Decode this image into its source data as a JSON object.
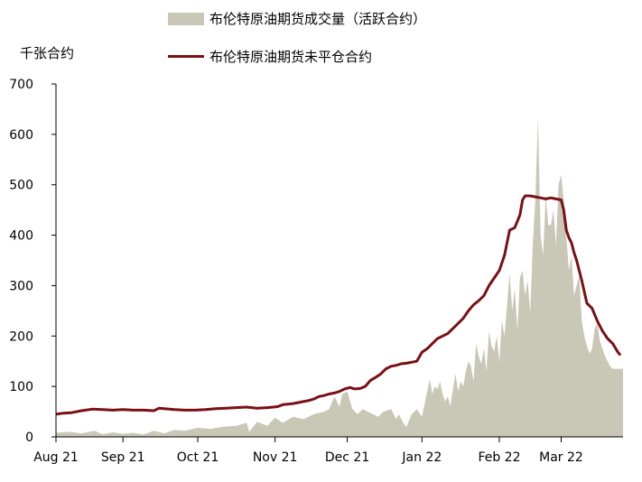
{
  "chart_data": {
    "type": "area",
    "ylabel": "千张合约",
    "ylim": [
      0,
      700
    ],
    "yticks": [
      0,
      100,
      200,
      300,
      400,
      500,
      600,
      700
    ],
    "xlim": [
      0,
      220
    ],
    "xticks": [
      {
        "label": "Aug 21",
        "x": 0
      },
      {
        "label": "Sep 21",
        "x": 26
      },
      {
        "label": "Oct 21",
        "x": 55
      },
      {
        "label": "Nov 21",
        "x": 85
      },
      {
        "label": "Dec 21",
        "x": 113
      },
      {
        "label": "Jan 22",
        "x": 142
      },
      {
        "label": "Feb 22",
        "x": 172
      },
      {
        "label": "Mar 22",
        "x": 196
      }
    ],
    "legend_position": "top",
    "series": [
      {
        "name": "布伦特原油期货成交量（活跃合约）",
        "kind": "area",
        "color": "#c9c7b6",
        "x": [
          0,
          5,
          10,
          15,
          18,
          22,
          26,
          30,
          34,
          38,
          42,
          46,
          50,
          55,
          60,
          65,
          70,
          74,
          75,
          78,
          82,
          85,
          88,
          92,
          96,
          100,
          104,
          106,
          108,
          110,
          111,
          113,
          115,
          117,
          119,
          121,
          123,
          125,
          127,
          130,
          132,
          133,
          135,
          136,
          138,
          140,
          142,
          143,
          144,
          145,
          146,
          147,
          148,
          149,
          150,
          151,
          152,
          153,
          154,
          155,
          156,
          157,
          158,
          159,
          160,
          161,
          162,
          163,
          164,
          165,
          166,
          167,
          168,
          169,
          170,
          171,
          172,
          173,
          174,
          175,
          176,
          177,
          178,
          179,
          180,
          181,
          182,
          183,
          184,
          185,
          186,
          187,
          188,
          189,
          190,
          191,
          192,
          193,
          194,
          195,
          196,
          197,
          198,
          199,
          200,
          201,
          202,
          203,
          204,
          205,
          206,
          207,
          208,
          209,
          210,
          211,
          212,
          213,
          214,
          215,
          216,
          217,
          218,
          219,
          220
        ],
        "values": [
          8,
          10,
          7,
          12,
          5,
          9,
          6,
          8,
          5,
          12,
          7,
          14,
          12,
          18,
          16,
          20,
          22,
          28,
          10,
          30,
          22,
          38,
          28,
          40,
          35,
          45,
          50,
          55,
          80,
          60,
          85,
          90,
          55,
          45,
          55,
          50,
          45,
          40,
          50,
          55,
          35,
          45,
          25,
          20,
          45,
          55,
          40,
          65,
          90,
          115,
          85,
          100,
          95,
          110,
          85,
          70,
          80,
          60,
          95,
          125,
          90,
          110,
          100,
          130,
          150,
          140,
          110,
          185,
          160,
          145,
          175,
          130,
          210,
          180,
          170,
          200,
          150,
          230,
          200,
          260,
          325,
          250,
          295,
          210,
          315,
          330,
          280,
          310,
          245,
          385,
          470,
          634,
          400,
          360,
          480,
          420,
          420,
          450,
          380,
          500,
          520,
          470,
          395,
          330,
          360,
          280,
          300,
          320,
          230,
          200,
          180,
          165,
          175,
          215,
          225,
          190,
          175,
          160,
          150,
          140,
          135,
          135,
          135,
          135,
          135
        ],
        "x_end_clip": 219
      },
      {
        "name": "布伦特原油期货未平仓合约",
        "kind": "line",
        "color": "#7a1015",
        "x": [
          0,
          3,
          6,
          10,
          14,
          18,
          22,
          26,
          30,
          34,
          38,
          40,
          42,
          46,
          50,
          54,
          58,
          62,
          66,
          70,
          74,
          76,
          78,
          82,
          86,
          88,
          90,
          92,
          94,
          96,
          98,
          100,
          102,
          104,
          106,
          108,
          110,
          112,
          114,
          116,
          118,
          120,
          122,
          124,
          126,
          128,
          130,
          132,
          134,
          136,
          138,
          140,
          142,
          144,
          146,
          148,
          150,
          152,
          154,
          156,
          158,
          160,
          162,
          164,
          166,
          168,
          170,
          172,
          174,
          176,
          178,
          180,
          181,
          182,
          184,
          186,
          188,
          190,
          192,
          194,
          196,
          197,
          198,
          199,
          200,
          201,
          202,
          204,
          206,
          208,
          210,
          212,
          214,
          216,
          218,
          219
        ],
        "values": [
          45,
          47,
          48,
          52,
          55,
          54,
          53,
          54,
          53,
          53,
          52,
          57,
          56,
          54,
          53,
          53,
          54,
          56,
          57,
          58,
          59,
          58,
          57,
          58,
          60,
          64,
          65,
          66,
          68,
          70,
          72,
          75,
          80,
          82,
          85,
          87,
          90,
          95,
          98,
          95,
          96,
          100,
          112,
          118,
          125,
          135,
          140,
          142,
          145,
          146,
          148,
          150,
          168,
          175,
          185,
          195,
          200,
          205,
          215,
          225,
          235,
          250,
          262,
          270,
          280,
          300,
          315,
          330,
          360,
          410,
          415,
          440,
          470,
          478,
          478,
          476,
          474,
          472,
          474,
          472,
          470,
          450,
          410,
          395,
          385,
          365,
          350,
          310,
          265,
          255,
          230,
          210,
          195,
          185,
          168,
          162
        ]
      }
    ]
  }
}
